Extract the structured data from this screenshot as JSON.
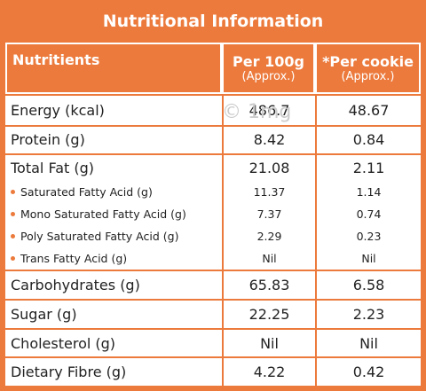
{
  "header": {
    "title": "Nutritional Information"
  },
  "watermark": "© 1mg",
  "table": {
    "columns": [
      {
        "label": "Nutritients"
      },
      {
        "label": "Per 100g",
        "sub": "(Approx.)"
      },
      {
        "label": "*Per cookie",
        "sub": "(Approx.)"
      }
    ],
    "rows": [
      {
        "label": "Energy (kcal)",
        "values": [
          "486.7",
          "48.67"
        ]
      },
      {
        "label": "Protein (g)",
        "values": [
          "8.42",
          "0.84"
        ]
      },
      {
        "label": "Total Fat (g)",
        "values": [
          "21.08",
          "2.11"
        ],
        "sub": [
          {
            "label": "Saturated Fatty Acid (g)",
            "values": [
              "11.37",
              "1.14"
            ]
          },
          {
            "label": "Mono Saturated Fatty Acid (g)",
            "values": [
              "7.37",
              "0.74"
            ]
          },
          {
            "label": "Poly Saturated Fatty Acid (g)",
            "values": [
              "2.29",
              "0.23"
            ]
          },
          {
            "label": "Trans Fatty Acid (g)",
            "values": [
              "Nil",
              "Nil"
            ]
          }
        ]
      },
      {
        "label": "Carbohydrates (g)",
        "values": [
          "65.83",
          "6.58"
        ]
      },
      {
        "label": "Sugar (g)",
        "values": [
          "22.25",
          "2.23"
        ]
      },
      {
        "label": "Cholesterol (g)",
        "values": [
          "Nil",
          "Nil"
        ]
      },
      {
        "label": "Dietary Fibre (g)",
        "values": [
          "4.22",
          "0.42"
        ]
      }
    ]
  }
}
